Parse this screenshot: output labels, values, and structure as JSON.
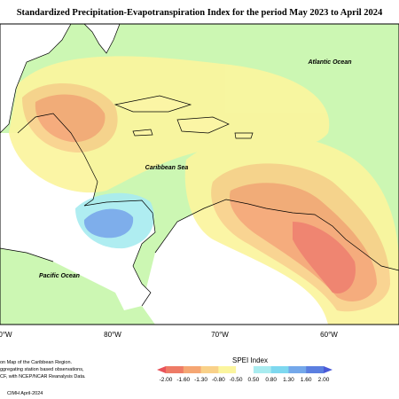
{
  "header": {
    "title": "Standardized Precipitation-Evapotranspiration Index for the period May 2023 to April 2024"
  },
  "map_labels": {
    "atlantic": "Atlantic Ocean",
    "caribbean": "Caribbean Sea",
    "pacific": "Pacific Ocean"
  },
  "longitudes": [
    "0°W",
    "80°W",
    "70°W",
    "60°W"
  ],
  "description": [
    "on Map of the Caribbean Region.",
    "ggregating station based observations,",
    "CF, with NCEP/NCAR Reanalysis Data."
  ],
  "legend": {
    "title": "SPEI Index",
    "ticks": [
      "-2.00",
      "-1.60",
      "-1.30",
      "-0.80",
      "-0.50",
      "0.50",
      "0.80",
      "1.30",
      "1.60",
      "2.00"
    ],
    "colors": [
      "#e9535a",
      "#ee7b66",
      "#f5a673",
      "#f9d189",
      "#fbf59e",
      "#ffffff",
      "#a9ecf0",
      "#7ed8ef",
      "#74a8ea",
      "#5b7fe0",
      "#4a5ad8"
    ]
  },
  "footer": "CIMH April-2024"
}
